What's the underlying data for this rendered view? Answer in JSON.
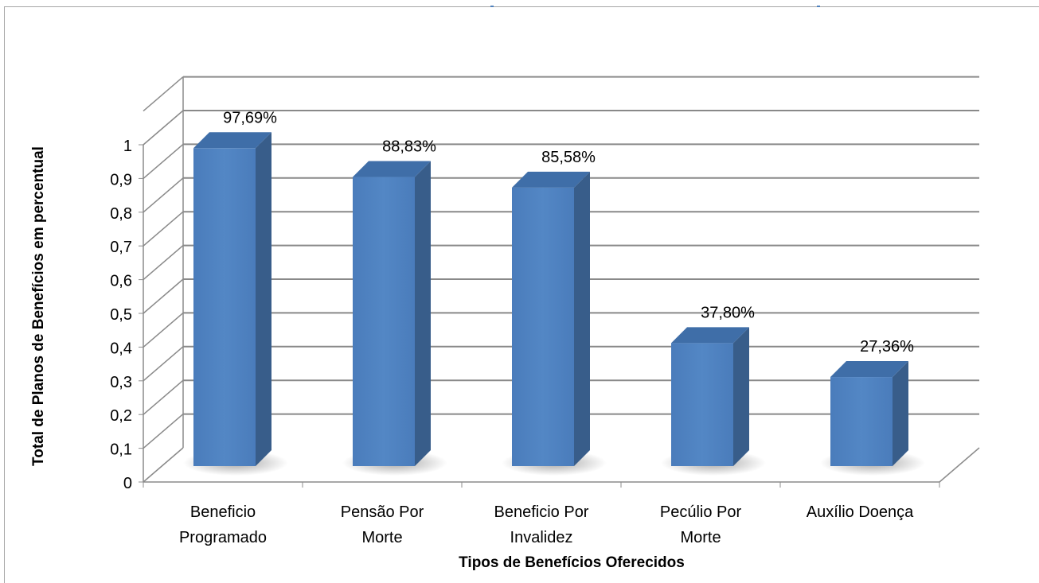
{
  "chart_data": {
    "type": "bar",
    "style": "3d-clustered-column",
    "categories": [
      [
        "Beneficio",
        "Programado"
      ],
      [
        "Pensão Por",
        "Morte"
      ],
      [
        "Beneficio Por",
        "Invalidez"
      ],
      [
        "Pecúlio Por",
        "Morte"
      ],
      [
        "Auxílio Doença"
      ]
    ],
    "values": [
      0.9769,
      0.8883,
      0.8558,
      0.378,
      0.2736
    ],
    "data_labels": [
      "97,69%",
      "88,83%",
      "85,58%",
      "37,80%",
      "27,36%"
    ],
    "xlabel": "Tipos de Benefícios Oferecidos",
    "ylabel": "Total de Planos de Benefícios em percentual",
    "yticks": [
      "0",
      "0,1",
      "0,2",
      "0,3",
      "0,4",
      "0,5",
      "0,6",
      "0,7",
      "0,8",
      "0,9",
      "1"
    ],
    "ylim": [
      0,
      1
    ],
    "grid": true,
    "legend": "none",
    "colors": {
      "bar_front": "#4f81bd",
      "bar_side": "#385d8a",
      "bar_top": "#3f6ea8",
      "gridline": "#898989",
      "wall_line": "#8c8c8c",
      "text": "#000000"
    }
  }
}
